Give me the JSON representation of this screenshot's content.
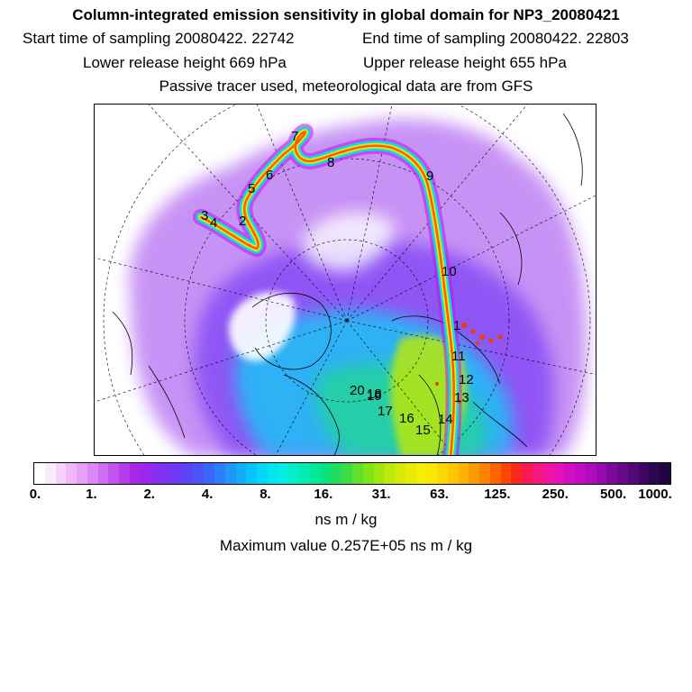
{
  "title": "Column-integrated emission sensitivity in global domain for NP3_20080421",
  "start_label": "Start time of sampling 20080422. 22742",
  "end_label": "End time of sampling 20080422. 22803",
  "lower_label": "Lower release height  669 hPa",
  "upper_label": "Upper release height  655 hPa",
  "note": "Passive tracer used, meteorological data are from GFS",
  "colorbar": {
    "ticks": [
      "0.",
      "1.",
      "2.",
      "4.",
      "8.",
      "16.",
      "31.",
      "63.",
      "125.",
      "250.",
      "500.",
      "1000."
    ],
    "colors": [
      "#ffffff",
      "#fbeafd",
      "#f5d2fb",
      "#efb9f9",
      "#e6a0f7",
      "#dd87f5",
      "#d06ef3",
      "#c354f0",
      "#b53ceb",
      "#a826e6",
      "#9a28ee",
      "#8a2df2",
      "#7a33f5",
      "#6a3af7",
      "#5a44f8",
      "#4a55f9",
      "#3b66fa",
      "#2d7ffb",
      "#1f97fb",
      "#12aefb",
      "#06c4fb",
      "#00d8f7",
      "#00e6ef",
      "#00eedf",
      "#00eeca",
      "#00ecb2",
      "#00e89a",
      "#08e27e",
      "#20dd62",
      "#3cdc46",
      "#5ee02c",
      "#80e418",
      "#a0e60e",
      "#bce80a",
      "#d4ea06",
      "#e8ec02",
      "#f4f000",
      "#fbe800",
      "#fdd800",
      "#fdc600",
      "#fdb200",
      "#fd9a00",
      "#fd8000",
      "#fd6400",
      "#fd4600",
      "#fb2a1a",
      "#f81a50",
      "#f5167e",
      "#f012a0",
      "#e510b6",
      "#d40ec0",
      "#c20cc4",
      "#ad0bbc",
      "#960aae",
      "#7f099c",
      "#68098a",
      "#520878",
      "#3e0764",
      "#2c0650",
      "#1e0540"
    ],
    "units": "ns m / kg"
  },
  "max_label": "Maximum value  0.257E+05 ns m / kg",
  "trajectory_labels": [
    "1",
    "2",
    "3",
    "4",
    "5",
    "6",
    "7",
    "8",
    "9",
    "10",
    "11",
    "12",
    "13",
    "14",
    "15",
    "16",
    "17",
    "18",
    "19",
    "20"
  ]
}
